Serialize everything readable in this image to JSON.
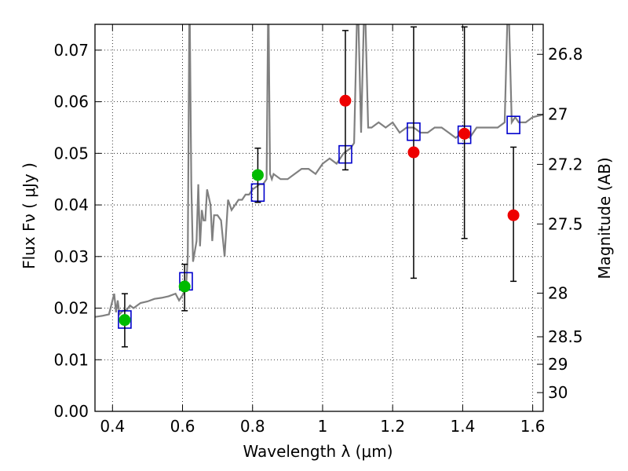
{
  "chart_data": {
    "type": "scatter",
    "xlabel": "Wavelength  λ (μm)",
    "ylabel": "Flux  Fν  ( μJy )",
    "y2label": "Magnitude (AB)",
    "xlim": [
      0.35,
      1.63
    ],
    "ylim": [
      0.0,
      0.075
    ],
    "grid": true,
    "x_ticks": [
      0.4,
      0.6,
      0.8,
      1.0,
      1.2,
      1.4,
      1.6
    ],
    "x_tick_labels": [
      "0.4",
      "0.6",
      "0.8",
      "1",
      "1.2",
      "1.4",
      "1.6"
    ],
    "y_ticks": [
      0.0,
      0.01,
      0.02,
      0.03,
      0.04,
      0.05,
      0.06,
      0.07
    ],
    "y_tick_labels": [
      "0.00",
      "0.01",
      "0.02",
      "0.03",
      "0.04",
      "0.05",
      "0.06",
      "0.07"
    ],
    "y2_ticks": [
      26.8,
      27.0,
      27.2,
      27.5,
      28.0,
      28.5,
      29.0,
      30.0
    ],
    "y2_tick_labels": [
      "26.8",
      "27",
      "27.2",
      "27.5",
      "28",
      "28.5",
      "29",
      "30"
    ],
    "colors": {
      "spectrum": "#808080",
      "model": "#0000cc",
      "detected": "#00bb00",
      "upper": "#ee0000",
      "errorbar": "#000000"
    },
    "series": [
      {
        "kind": "spectrum",
        "x": [
          0.35,
          0.37,
          0.39,
          0.405,
          0.41,
          0.415,
          0.42,
          0.43,
          0.44,
          0.45,
          0.46,
          0.48,
          0.5,
          0.52,
          0.54,
          0.56,
          0.58,
          0.59,
          0.6,
          0.61,
          0.615,
          0.62,
          0.625,
          0.63,
          0.64,
          0.645,
          0.65,
          0.655,
          0.66,
          0.665,
          0.67,
          0.68,
          0.685,
          0.69,
          0.7,
          0.71,
          0.72,
          0.73,
          0.74,
          0.75,
          0.76,
          0.77,
          0.78,
          0.79,
          0.8,
          0.81,
          0.82,
          0.83,
          0.84,
          0.845,
          0.85,
          0.855,
          0.86,
          0.88,
          0.9,
          0.92,
          0.94,
          0.96,
          0.98,
          1.0,
          1.02,
          1.04,
          1.06,
          1.08,
          1.09,
          1.1,
          1.11,
          1.12,
          1.13,
          1.14,
          1.16,
          1.18,
          1.2,
          1.22,
          1.24,
          1.26,
          1.28,
          1.3,
          1.32,
          1.34,
          1.36,
          1.38,
          1.4,
          1.42,
          1.44,
          1.46,
          1.48,
          1.5,
          1.52,
          1.53,
          1.54,
          1.55,
          1.56,
          1.58,
          1.6,
          1.63
        ],
        "y": [
          0.0183,
          0.0185,
          0.0188,
          0.0228,
          0.0192,
          0.0215,
          0.0188,
          0.0195,
          0.0196,
          0.0205,
          0.02,
          0.021,
          0.0213,
          0.0218,
          0.022,
          0.0223,
          0.0228,
          0.0215,
          0.0225,
          0.024,
          0.03,
          0.082,
          0.044,
          0.029,
          0.033,
          0.044,
          0.032,
          0.039,
          0.037,
          0.037,
          0.043,
          0.04,
          0.033,
          0.038,
          0.038,
          0.037,
          0.03,
          0.041,
          0.039,
          0.04,
          0.041,
          0.041,
          0.042,
          0.042,
          0.043,
          0.0435,
          0.044,
          0.044,
          0.045,
          0.082,
          0.046,
          0.045,
          0.046,
          0.045,
          0.045,
          0.046,
          0.047,
          0.047,
          0.046,
          0.048,
          0.049,
          0.048,
          0.05,
          0.051,
          0.052,
          0.082,
          0.054,
          0.082,
          0.055,
          0.055,
          0.056,
          0.055,
          0.056,
          0.054,
          0.055,
          0.055,
          0.054,
          0.054,
          0.055,
          0.055,
          0.054,
          0.053,
          0.054,
          0.053,
          0.055,
          0.055,
          0.055,
          0.055,
          0.056,
          0.082,
          0.056,
          0.057,
          0.056,
          0.056,
          0.057,
          0.0575
        ]
      },
      {
        "kind": "model",
        "x": [
          0.435,
          0.61,
          0.815,
          1.065,
          1.26,
          1.405,
          1.545
        ],
        "y": [
          0.0178,
          0.0252,
          0.0424,
          0.0498,
          0.0542,
          0.0536,
          0.0555
        ]
      },
      {
        "kind": "detected",
        "x": [
          0.435,
          0.606,
          0.815
        ],
        "y": [
          0.0177,
          0.0242,
          0.0458
        ],
        "yerr_low": [
          0.0125,
          0.0195,
          0.0405
        ],
        "yerr_high": [
          0.0228,
          0.0285,
          0.051
        ]
      },
      {
        "kind": "upper",
        "x": [
          1.065,
          1.26,
          1.405,
          1.545
        ],
        "y": [
          0.0602,
          0.0502,
          0.0538,
          0.038
        ],
        "yerr_low": [
          0.0468,
          0.0258,
          0.0335,
          0.0252
        ],
        "yerr_high": [
          0.0738,
          0.0745,
          0.0745,
          0.0512
        ]
      }
    ]
  }
}
